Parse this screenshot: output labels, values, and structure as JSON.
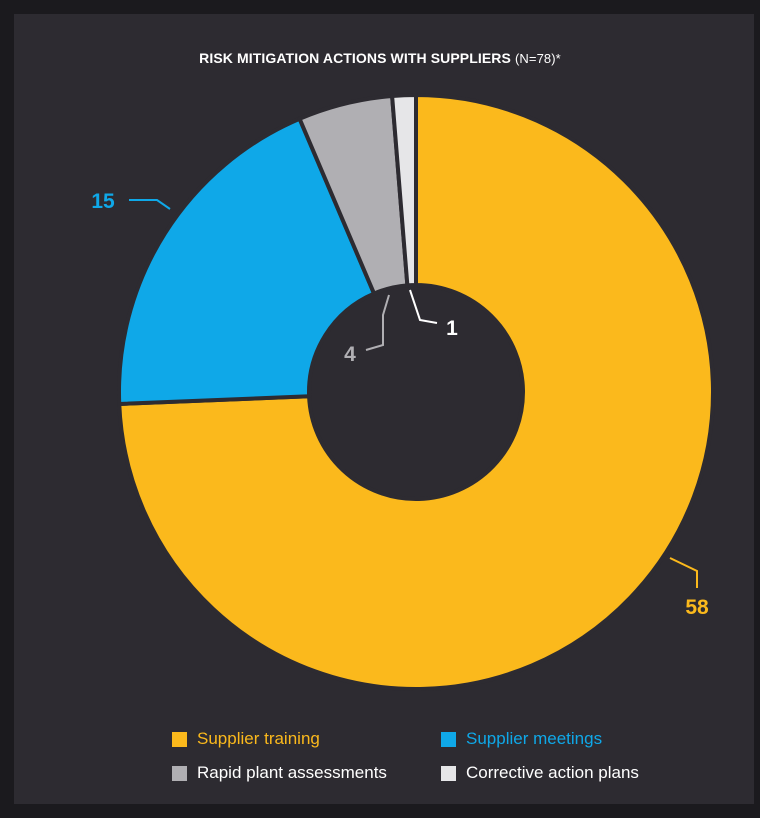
{
  "chart_data": {
    "type": "pie",
    "variant": "donut",
    "title": "RISK MITIGATION ACTIONS WITH SUPPLIERS",
    "subtitle": "(N=78)*",
    "slices": [
      {
        "label": "Supplier training",
        "value": 58,
        "color": "#fbb91c",
        "legend_text_color": "#fbb91c",
        "label_color": "#fbb91c"
      },
      {
        "label": "Supplier meetings",
        "value": 15,
        "color": "#0fa8e8",
        "legend_text_color": "#0fa8e8",
        "label_color": "#0fa8e8"
      },
      {
        "label": "Rapid plant assessments",
        "value": 4,
        "color": "#b0afb3",
        "legend_text_color": "#ffffff",
        "label_color": "#b0afb3"
      },
      {
        "label": "Corrective action plans",
        "value": 1,
        "color": "#e6e6e8",
        "legend_text_color": "#ffffff",
        "label_color": "#ffffff"
      }
    ],
    "data_labels": [
      "58",
      "15",
      "4",
      "1"
    ],
    "legend_placement": "bottom"
  },
  "colors": {
    "background": "#2d2b31",
    "outer_frame": "#1b1a1e",
    "slice_separator": "#2d2b31"
  }
}
